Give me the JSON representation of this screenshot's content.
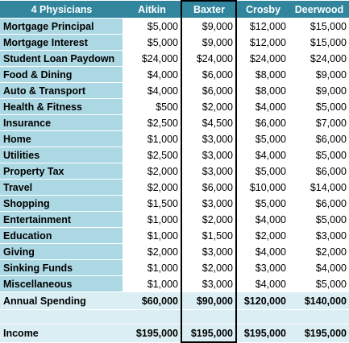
{
  "table": {
    "title": "4 Physicians",
    "columns": [
      "Aitkin",
      "Baxter",
      "Crosby",
      "Deerwood"
    ],
    "rows": [
      {
        "label": "Mortgage Principal",
        "values": [
          "$5,000",
          "$9,000",
          "$12,000",
          "$15,000"
        ]
      },
      {
        "label": "Mortgage Interest",
        "values": [
          "$5,000",
          "$9,000",
          "$12,000",
          "$15,000"
        ]
      },
      {
        "label": "Student Loan Paydown",
        "values": [
          "$24,000",
          "$24,000",
          "$24,000",
          "$24,000"
        ]
      },
      {
        "label": "Food & Dining",
        "values": [
          "$4,000",
          "$6,000",
          "$8,000",
          "$9,000"
        ]
      },
      {
        "label": "Auto & Transport",
        "values": [
          "$4,000",
          "$6,000",
          "$8,000",
          "$9,000"
        ]
      },
      {
        "label": "Health & Fitness",
        "values": [
          "$500",
          "$2,000",
          "$4,000",
          "$5,000"
        ]
      },
      {
        "label": "Insurance",
        "values": [
          "$2,500",
          "$4,500",
          "$6,000",
          "$7,000"
        ]
      },
      {
        "label": "Home",
        "values": [
          "$1,000",
          "$3,000",
          "$5,000",
          "$6,000"
        ]
      },
      {
        "label": "Utilities",
        "values": [
          "$2,500",
          "$3,000",
          "$4,000",
          "$5,000"
        ]
      },
      {
        "label": "Property Tax",
        "values": [
          "$2,000",
          "$3,000",
          "$5,000",
          "$6,000"
        ]
      },
      {
        "label": "Travel",
        "values": [
          "$2,000",
          "$6,000",
          "$10,000",
          "$14,000"
        ]
      },
      {
        "label": "Shopping",
        "values": [
          "$1,500",
          "$3,000",
          "$5,000",
          "$6,000"
        ]
      },
      {
        "label": "Entertainment",
        "values": [
          "$1,000",
          "$2,000",
          "$4,000",
          "$5,000"
        ]
      },
      {
        "label": "Education",
        "values": [
          "$1,000",
          "$1,500",
          "$2,000",
          "$3,000"
        ]
      },
      {
        "label": "Giving",
        "values": [
          "$2,000",
          "$3,000",
          "$4,000",
          "$2,000"
        ]
      },
      {
        "label": "Sinking Funds",
        "values": [
          "$1,000",
          "$2,000",
          "$3,000",
          "$4,000"
        ]
      },
      {
        "label": "Miscellaneous",
        "values": [
          "$1,000",
          "$3,000",
          "$4,000",
          "$5,000"
        ]
      }
    ],
    "total": {
      "label": "Annual Spending",
      "values": [
        "$60,000",
        "$90,000",
        "$120,000",
        "$140,000"
      ]
    },
    "income": {
      "label": "Income",
      "values": [
        "$195,000",
        "$195,000",
        "$195,000",
        "$195,000"
      ]
    }
  }
}
